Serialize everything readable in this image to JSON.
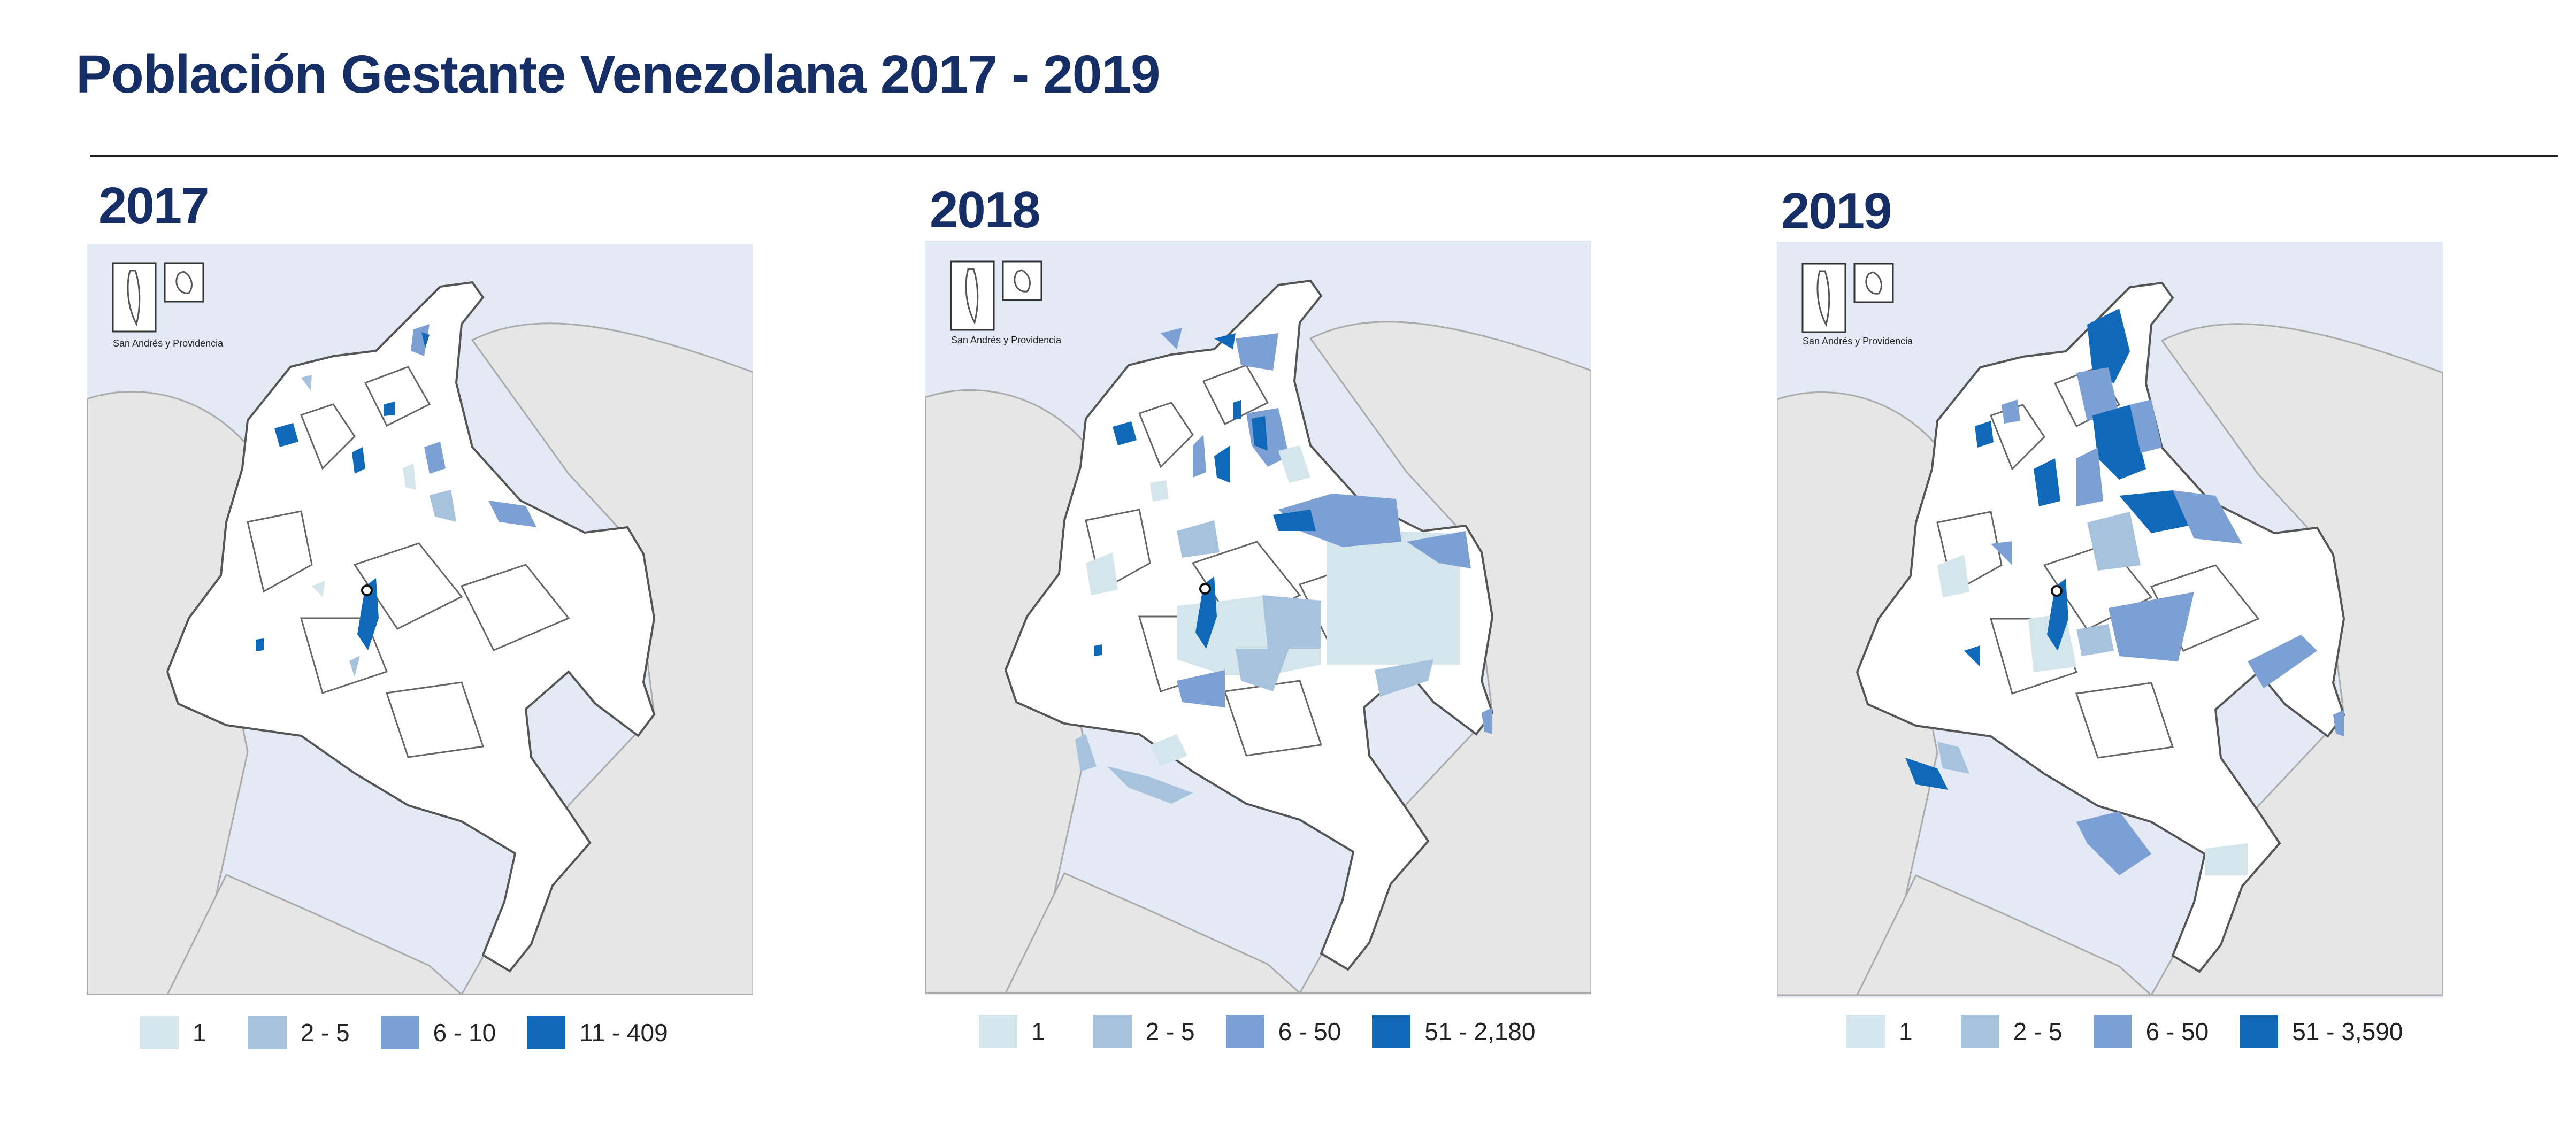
{
  "title": "Población Gestante Venezolana 2017 - 2019",
  "inset_label": "San Andrés y Providencia",
  "colors": {
    "title": "#152f66",
    "sea": "#e3e9f5",
    "land_neighbor": "#e6e6e6",
    "land_colombia": "#ffffff",
    "class_1": "#d4e6ec",
    "class_2": "#a7c2dc",
    "class_3": "#7c9fd4",
    "class_4": "#0f69b8"
  },
  "maps": [
    {
      "year": "2017",
      "legend": [
        {
          "label": "1",
          "color": "#d4e6ec"
        },
        {
          "label": "2 - 5",
          "color": "#a7c2dc"
        },
        {
          "label": "6 - 10",
          "color": "#7c9fd4"
        },
        {
          "label": "11 - 409",
          "color": "#0f69b8"
        }
      ]
    },
    {
      "year": "2018",
      "legend": [
        {
          "label": "1",
          "color": "#d4e6ec"
        },
        {
          "label": "2 - 5",
          "color": "#a7c2dc"
        },
        {
          "label": "6 - 50",
          "color": "#7c9fd4"
        },
        {
          "label": "51 - 2,180",
          "color": "#0f69b8"
        }
      ]
    },
    {
      "year": "2019",
      "legend": [
        {
          "label": "1",
          "color": "#d4e6ec"
        },
        {
          "label": "2 - 5",
          "color": "#a7c2dc"
        },
        {
          "label": "6 - 50",
          "color": "#7c9fd4"
        },
        {
          "label": "51 - 3,590",
          "color": "#0f69b8"
        }
      ]
    }
  ]
}
